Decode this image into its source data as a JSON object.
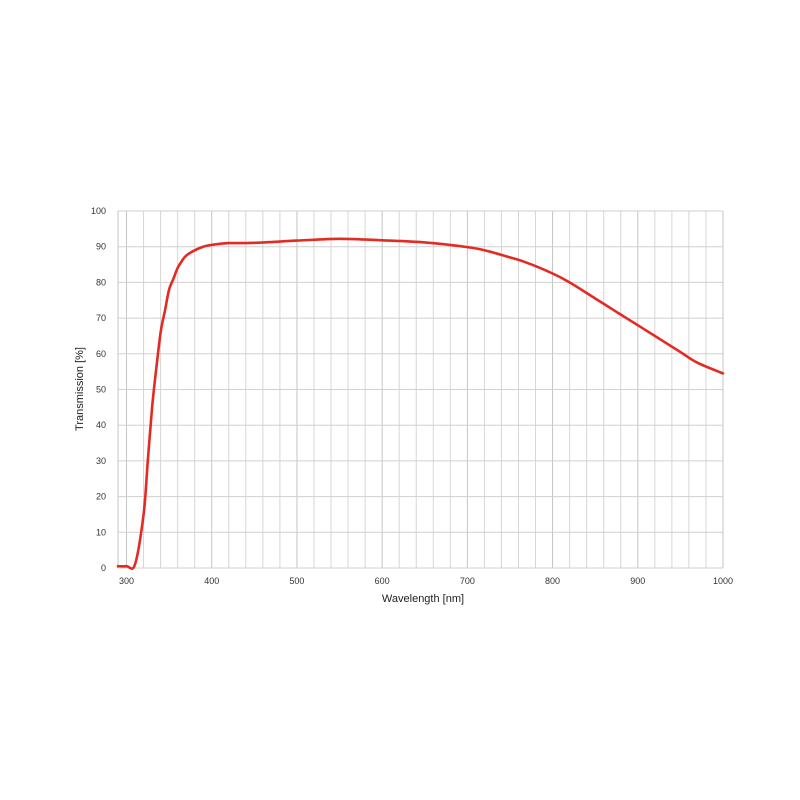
{
  "chart_data": {
    "type": "line",
    "title": "",
    "xlabel": "Wavelength [nm]",
    "ylabel": "Transmission [%]",
    "xlim": [
      290,
      1000
    ],
    "ylim": [
      0,
      100
    ],
    "x_ticks": [
      300,
      400,
      500,
      600,
      700,
      800,
      900,
      1000
    ],
    "y_ticks": [
      0,
      10,
      20,
      30,
      40,
      50,
      60,
      70,
      80,
      90,
      100
    ],
    "x_tick_labels": [
      "300",
      "400",
      "500",
      "600",
      "700",
      "800",
      "900",
      "1000"
    ],
    "y_tick_labels": [
      "0",
      "10",
      "20",
      "30",
      "40",
      "50",
      "60",
      "70",
      "80",
      "90",
      "100"
    ],
    "grid": true,
    "legend": "none",
    "series": [
      {
        "color": "#e32b24",
        "x": [
          290,
          300,
          310,
          320,
          325,
          330,
          335,
          340,
          345,
          350,
          355,
          360,
          365,
          370,
          380,
          390,
          400,
          410,
          420,
          450,
          500,
          550,
          600,
          650,
          700,
          720,
          750,
          770,
          800,
          820,
          850,
          870,
          880,
          900,
          920,
          950,
          970,
          1000
        ],
        "y": [
          0.5,
          0.5,
          1,
          15,
          30,
          45,
          56,
          66,
          72,
          78,
          81,
          84,
          86,
          87.5,
          89,
          90,
          90.5,
          90.8,
          91,
          91.1,
          91.7,
          92.2,
          91.8,
          91.2,
          89.9,
          89,
          87,
          85.5,
          82.5,
          80,
          75.5,
          72.5,
          71,
          68,
          65,
          60.5,
          57.5,
          54.5
        ]
      }
    ]
  }
}
